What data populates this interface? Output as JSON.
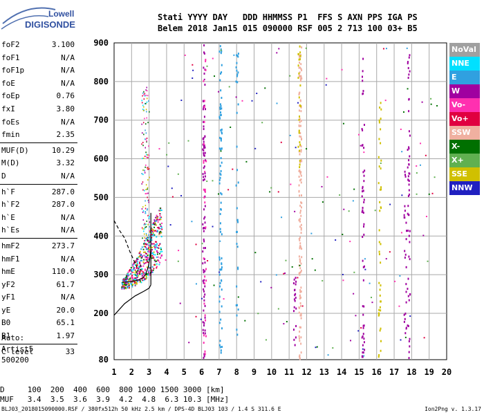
{
  "logo": {
    "line1": "Lowell",
    "line2": "DIGISONDE"
  },
  "header": {
    "line1": "Stati YYYY DAY   DDD HHMMSS P1  FFS S AXN PPS IGA PS",
    "line2": "Belem 2018 Jan15 015 090000 RSF 005 2 713 100 03+ B5"
  },
  "params": [
    [
      {
        "key": "foF2",
        "value": "3.100"
      },
      {
        "key": "foF1",
        "value": "N/A"
      },
      {
        "key": "foF1p",
        "value": "N/A"
      },
      {
        "key": "foE",
        "value": "N/A"
      },
      {
        "key": "foEp",
        "value": "0.76"
      },
      {
        "key": "fxI",
        "value": "3.80"
      },
      {
        "key": "foEs",
        "value": "N/A"
      },
      {
        "key": "fmin",
        "value": "2.35"
      }
    ],
    [
      {
        "key": "MUF(D)",
        "value": "10.29"
      },
      {
        "key": "M(D)",
        "value": "3.32"
      },
      {
        "key": "D",
        "value": "N/A"
      }
    ],
    [
      {
        "key": "h`F",
        "value": "287.0"
      },
      {
        "key": "h`F2",
        "value": "287.0"
      },
      {
        "key": "h`E",
        "value": "N/A"
      },
      {
        "key": "h`Es",
        "value": "N/A"
      }
    ],
    [
      {
        "key": "hmF2",
        "value": "273.7"
      },
      {
        "key": "hmF1",
        "value": "N/A"
      },
      {
        "key": "hmE",
        "value": "110.0"
      },
      {
        "key": "yF2",
        "value": "61.7"
      },
      {
        "key": "yF1",
        "value": "N/A"
      },
      {
        "key": "yE",
        "value": "20.0"
      },
      {
        "key": "B0",
        "value": "65.1"
      },
      {
        "key": "B1",
        "value": "1.97"
      }
    ],
    [
      {
        "key": "C-level",
        "value": "33"
      }
    ]
  ],
  "auto": {
    "line1": "Auto:",
    "line2": "Artist5",
    "line3": "500200"
  },
  "dtable": {
    "row1": "D     100  200  400  600  800 1000 1500 3000 [km]",
    "row2": "MUF   3.4  3.5  3.6  3.9  4.2  4.8  6.3 10.3 [MHz]"
  },
  "footer": {
    "left": "BLJ03_2018015090000.RSF / 380fx512h 50 kHz 2.5 km / DPS-4D BLJ03 103 / 1.4 S 311.6 E",
    "right": "Ion2Png v. 1.3.17"
  },
  "legend": [
    {
      "label": "NoVal",
      "color": "#a0a0a0"
    },
    {
      "label": "NNE",
      "color": "#00e0ff"
    },
    {
      "label": "E",
      "color": "#30a0e0"
    },
    {
      "label": "W",
      "color": "#a000a0"
    },
    {
      "label": "Vo-",
      "color": "#ff30b0"
    },
    {
      "label": "Vo+",
      "color": "#e00040"
    },
    {
      "label": "SSW",
      "color": "#f0b0a0"
    },
    {
      "label": "X-",
      "color": "#007000"
    },
    {
      "label": "X+",
      "color": "#60b050"
    },
    {
      "label": "SSE",
      "color": "#d0c000"
    },
    {
      "label": "NNW",
      "color": "#2020c0"
    }
  ],
  "chart_data": {
    "type": "scatter",
    "xlim": [
      1,
      20
    ],
    "ylim": [
      80,
      900
    ],
    "x_ticks": [
      "1",
      "2",
      "3",
      "4",
      "5",
      "6",
      "7",
      "8",
      "9",
      "10",
      "11",
      "12",
      "13",
      "14",
      "15",
      "16",
      "17",
      "18",
      "19",
      "20"
    ],
    "y_ticks": [
      "80",
      "200",
      "300",
      "400",
      "500",
      "600",
      "700",
      "800",
      "900"
    ],
    "grid": true,
    "traces": [
      {
        "name": "F2-trace-ordinary",
        "points": [
          [
            1.45,
            280
          ],
          [
            1.9,
            282
          ],
          [
            2.3,
            285
          ],
          [
            2.6,
            290
          ],
          [
            2.8,
            300
          ],
          [
            2.95,
            320
          ],
          [
            3.05,
            345
          ],
          [
            3.1,
            365
          ]
        ]
      },
      {
        "name": "profile",
        "points": [
          [
            1.0,
            195
          ],
          [
            1.6,
            225
          ],
          [
            2.2,
            245
          ],
          [
            2.7,
            257
          ],
          [
            3.0,
            265
          ],
          [
            3.1,
            273.7
          ]
        ]
      },
      {
        "name": "profile-upper",
        "points": [
          [
            3.1,
            273.7
          ],
          [
            3.1,
            330
          ],
          [
            3.1,
            400
          ],
          [
            3.1,
            460
          ]
        ]
      },
      {
        "name": "profile-dashed",
        "points": [
          [
            1.0,
            440
          ],
          [
            1.3,
            415
          ],
          [
            1.6,
            395
          ],
          [
            1.9,
            360
          ],
          [
            2.1,
            340
          ],
          [
            2.3,
            320
          ]
        ]
      }
    ],
    "columns": [
      {
        "x": 6.1,
        "y0": 80,
        "y1": 900,
        "color": "#a000a0",
        "n": 90
      },
      {
        "x": 7.05,
        "y0": 80,
        "y1": 900,
        "color": "#30a0e0",
        "n": 80
      },
      {
        "x": 11.6,
        "y0": 80,
        "y1": 900,
        "color": "#f0b0a0",
        "n": 140
      },
      {
        "x": 11.55,
        "y0": 550,
        "y1": 900,
        "color": "#d0c000",
        "n": 25
      },
      {
        "x": 11.3,
        "y0": 120,
        "y1": 300,
        "color": "#a000a0",
        "n": 20
      },
      {
        "x": 15.2,
        "y0": 80,
        "y1": 900,
        "color": "#a000a0",
        "n": 55
      },
      {
        "x": 16.15,
        "y0": 80,
        "y1": 750,
        "color": "#d0c000",
        "n": 45
      },
      {
        "x": 17.8,
        "y0": 80,
        "y1": 900,
        "color": "#a000a0",
        "n": 55
      },
      {
        "x": 17.6,
        "y0": 150,
        "y1": 600,
        "color": "#a000a0",
        "n": 25
      },
      {
        "x": 8.0,
        "y0": 80,
        "y1": 900,
        "color": "#30a0e0",
        "n": 35
      },
      {
        "x": 6.15,
        "y0": 80,
        "y1": 900,
        "color": "#ff30b0",
        "n": 30
      }
    ]
  }
}
